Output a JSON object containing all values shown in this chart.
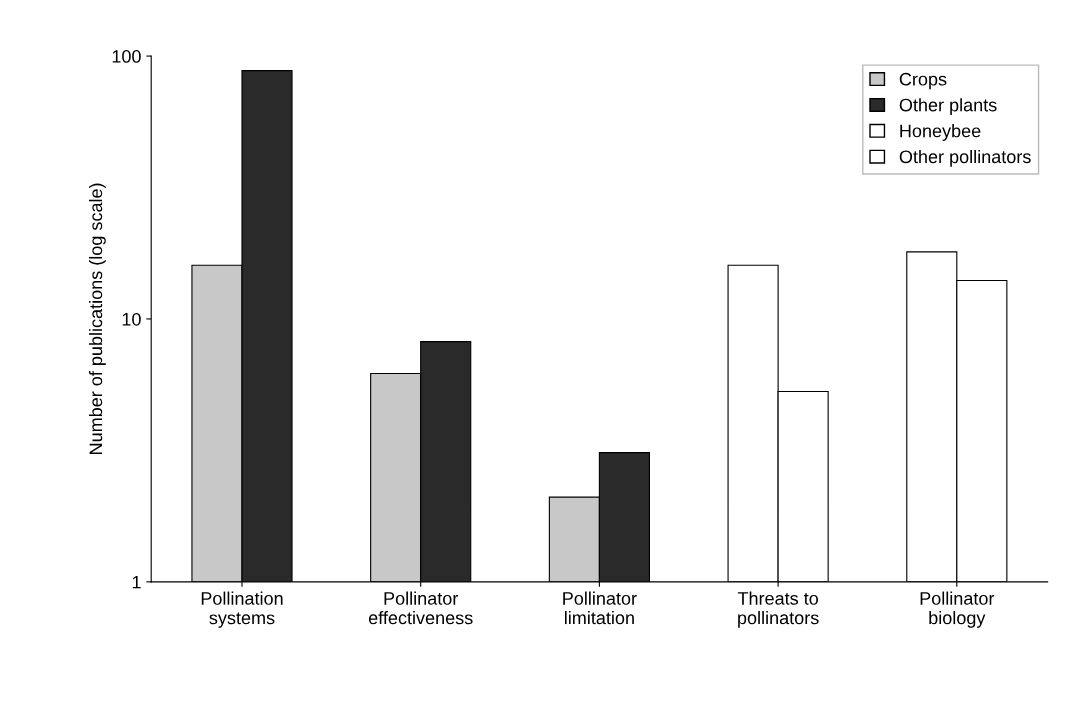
{
  "chart_data": {
    "type": "bar",
    "ylabel": "Number of publications (log scale)",
    "categories": [
      "Pollination\nsystems",
      "Pollinator\neffectiveness",
      "Pollinator\nlimitation",
      "Threats to\npollinators",
      "Pollinator\nbiology"
    ],
    "series": [
      {
        "name": "Crops",
        "color": "#c8c8c8",
        "values": [
          16,
          6.2,
          2.1,
          null,
          null
        ]
      },
      {
        "name": "Other plants",
        "color": "#2a2a2a",
        "values": [
          88,
          8.2,
          3.1,
          null,
          null
        ]
      },
      {
        "name": "Honeybee",
        "color": "#ffffff",
        "values": [
          null,
          null,
          null,
          16,
          18
        ]
      },
      {
        "name": "Other pollinators",
        "color": "#ffffff",
        "values": [
          null,
          null,
          null,
          5.3,
          14
        ]
      }
    ],
    "log": true,
    "ylim": [
      1,
      100
    ],
    "yticks": [
      1,
      10,
      100
    ],
    "legend": "top right",
    "grid": false
  }
}
